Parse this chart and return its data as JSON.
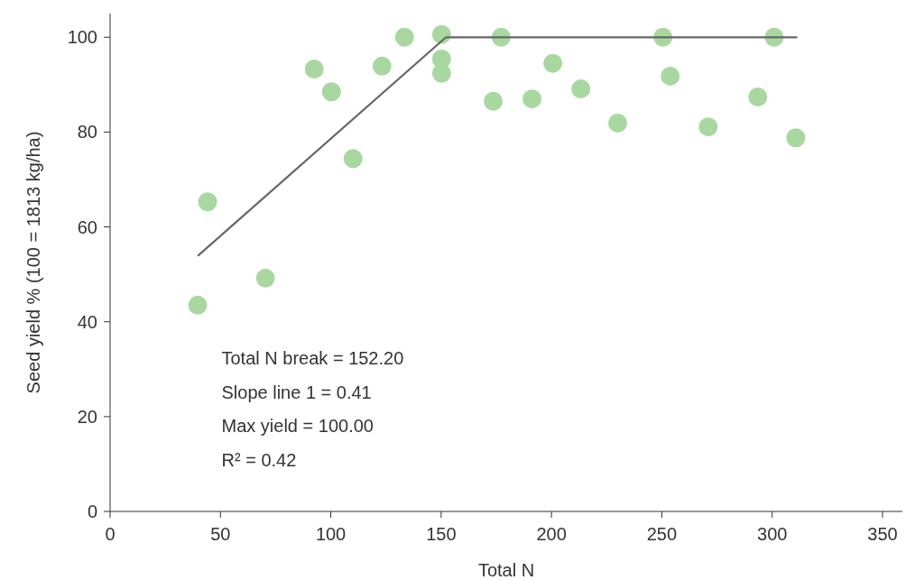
{
  "chart_data": {
    "type": "scatter",
    "xlabel": "Total N",
    "ylabel": "Seed yield % (100 = 1813 kg/ha)",
    "xlim": [
      0,
      359
    ],
    "xticks": [
      0,
      50,
      100,
      150,
      200,
      250,
      300,
      350
    ],
    "ylim": [
      0,
      105
    ],
    "yticks": [
      0,
      20,
      40,
      60,
      80,
      100
    ],
    "grid": false,
    "series": [
      {
        "color": "#a8d8a0",
        "marker": "circle",
        "x": [
          39.7,
          44.2,
          70.4,
          92.5,
          100.3,
          110.1,
          123.2,
          133.4,
          150.2,
          150.2,
          150.2,
          173.6,
          177.2,
          191.2,
          200.6,
          213.3,
          230.0,
          250.5,
          253.8,
          271.0,
          293.5,
          300.9,
          310.7
        ],
        "values": [
          43.5,
          65.3,
          49.2,
          93.3,
          88.5,
          74.4,
          93.9,
          100,
          100.6,
          95.4,
          92.4,
          86.5,
          100,
          87.0,
          94.5,
          89.1,
          81.9,
          100,
          91.8,
          81.1,
          87.4,
          100,
          78.8
        ]
      },
      {
        "type": "line",
        "color": "#666666",
        "marker": "none",
        "line_style": "solid",
        "x": [
          40,
          152.2,
          311
        ],
        "values": [
          54.0,
          100,
          100
        ]
      }
    ],
    "annotations": [
      "Total N break = 152.20",
      "Slope line 1 = 0.41",
      "Max yield = 100.00",
      "R² = 0.42"
    ]
  }
}
